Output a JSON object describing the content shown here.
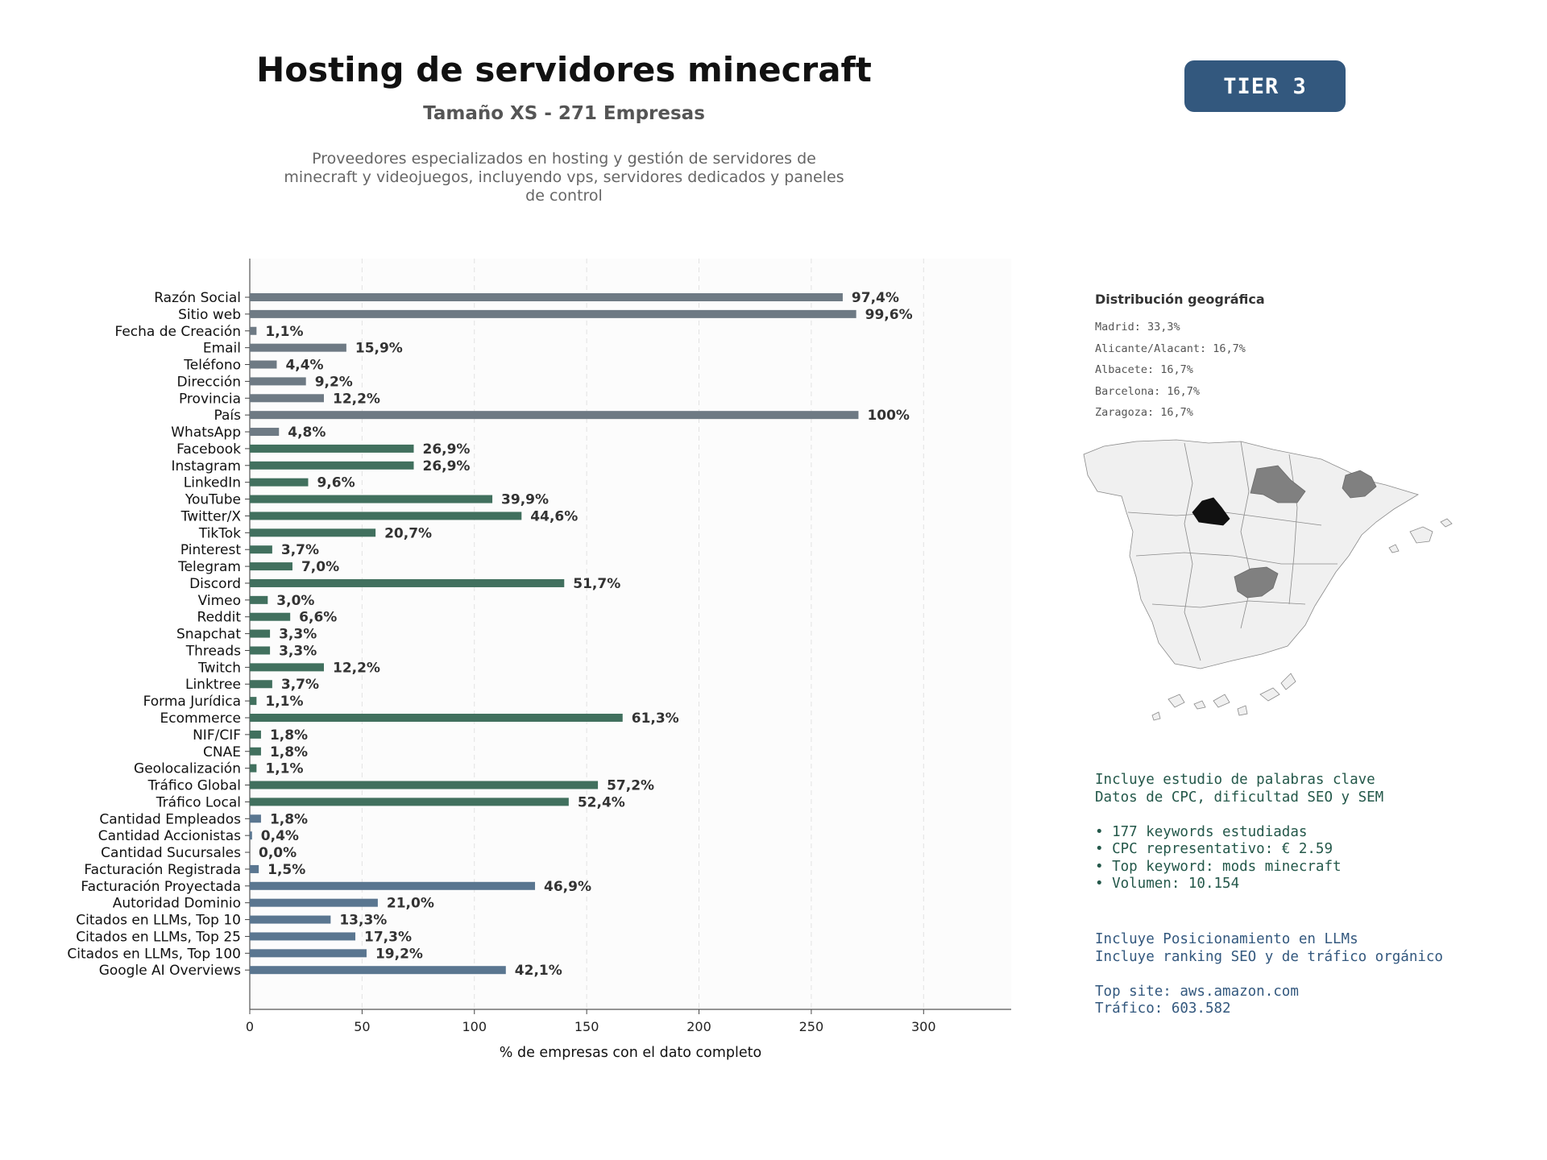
{
  "header": {
    "title": "Hosting de servidores minecraft",
    "subtitle": "Tamaño XS - 271 Empresas",
    "description": "Proveedores especializados en hosting y gestión de servidores de minecraft y videojuegos, incluyendo vps, servidores dedicados y paneles de control",
    "badge": "TIER 3"
  },
  "colors": {
    "gray": "#6e7a84",
    "green": "#41705e",
    "blue": "#5a7690",
    "badge": "#33587e"
  },
  "chart_data": {
    "type": "bar",
    "orientation": "horizontal",
    "xlabel": "% de empresas con el dato completo",
    "xlim": [
      0,
      339
    ],
    "xticks": [
      0,
      50,
      100,
      150,
      200,
      250,
      300
    ],
    "grid": "vertical",
    "categories": [
      "Razón Social",
      "Sitio web",
      "Fecha de Creación",
      "Email",
      "Teléfono",
      "Dirección",
      "Provincia",
      "País",
      "WhatsApp",
      "Facebook",
      "Instagram",
      "LinkedIn",
      "YouTube",
      "Twitter/X",
      "TikTok",
      "Pinterest",
      "Telegram",
      "Discord",
      "Vimeo",
      "Reddit",
      "Snapchat",
      "Threads",
      "Twitch",
      "Linktree",
      "Forma Jurídica",
      "Ecommerce",
      "NIF/CIF",
      "CNAE",
      "Geolocalización",
      "Tráfico Global",
      "Tráfico Local",
      "Cantidad Empleados",
      "Cantidad Accionistas",
      "Cantidad Sucursales",
      "Facturación Registrada",
      "Facturación Proyectada",
      "Autoridad Dominio",
      "Citados en LLMs, Top 10",
      "Citados en LLMs, Top 25",
      "Citados en LLMs, Top 100",
      "Google AI Overviews"
    ],
    "values": [
      264,
      270,
      3,
      43,
      12,
      25,
      33,
      271,
      13,
      73,
      73,
      26,
      108,
      121,
      56,
      10,
      19,
      140,
      8,
      18,
      9,
      9,
      33,
      10,
      3,
      166,
      5,
      5,
      3,
      155,
      142,
      5,
      1,
      0,
      4,
      127,
      57,
      36,
      47,
      52,
      114
    ],
    "labels": [
      "97,4%",
      "99,6%",
      "1,1%",
      "15,9%",
      "4,4%",
      "9,2%",
      "12,2%",
      "100%",
      "4,8%",
      "26,9%",
      "26,9%",
      "9,6%",
      "39,9%",
      "44,6%",
      "20,7%",
      "3,7%",
      "7,0%",
      "51,7%",
      "3,0%",
      "6,6%",
      "3,3%",
      "3,3%",
      "12,2%",
      "3,7%",
      "1,1%",
      "61,3%",
      "1,8%",
      "1,8%",
      "1,1%",
      "57,2%",
      "52,4%",
      "1,8%",
      "0,4%",
      "0,0%",
      "1,5%",
      "46,9%",
      "21,0%",
      "13,3%",
      "17,3%",
      "19,2%",
      "42,1%"
    ],
    "groups": [
      "gray",
      "gray",
      "gray",
      "gray",
      "gray",
      "gray",
      "gray",
      "gray",
      "gray",
      "green",
      "green",
      "green",
      "green",
      "green",
      "green",
      "green",
      "green",
      "green",
      "green",
      "green",
      "green",
      "green",
      "green",
      "green",
      "green",
      "green",
      "green",
      "green",
      "green",
      "green",
      "green",
      "blue",
      "blue",
      "blue",
      "blue",
      "blue",
      "blue",
      "blue",
      "blue",
      "blue",
      "blue"
    ]
  },
  "geo": {
    "title": "Distribución geográfica",
    "items": [
      "Madrid: 33,3%",
      "Alicante/Alacant: 16,7%",
      "Albacete: 16,7%",
      "Barcelona: 16,7%",
      "Zaragoza: 16,7%"
    ]
  },
  "keywords": {
    "line1": "Incluye estudio de palabras clave",
    "line2": "Datos de CPC, dificultad SEO y SEM",
    "bullet1": "• 177 keywords estudiadas",
    "bullet2": "• CPC representativo: € 2.59",
    "bullet3": "• Top keyword: mods minecraft",
    "bullet4": "• Volumen: 10.154"
  },
  "llm": {
    "line1": "Incluye Posicionamiento en LLMs",
    "line2": "Incluye ranking SEO y de tráfico orgánico",
    "top_site": "Top site: aws.amazon.com",
    "traffic": "Tráfico: 603.582"
  }
}
